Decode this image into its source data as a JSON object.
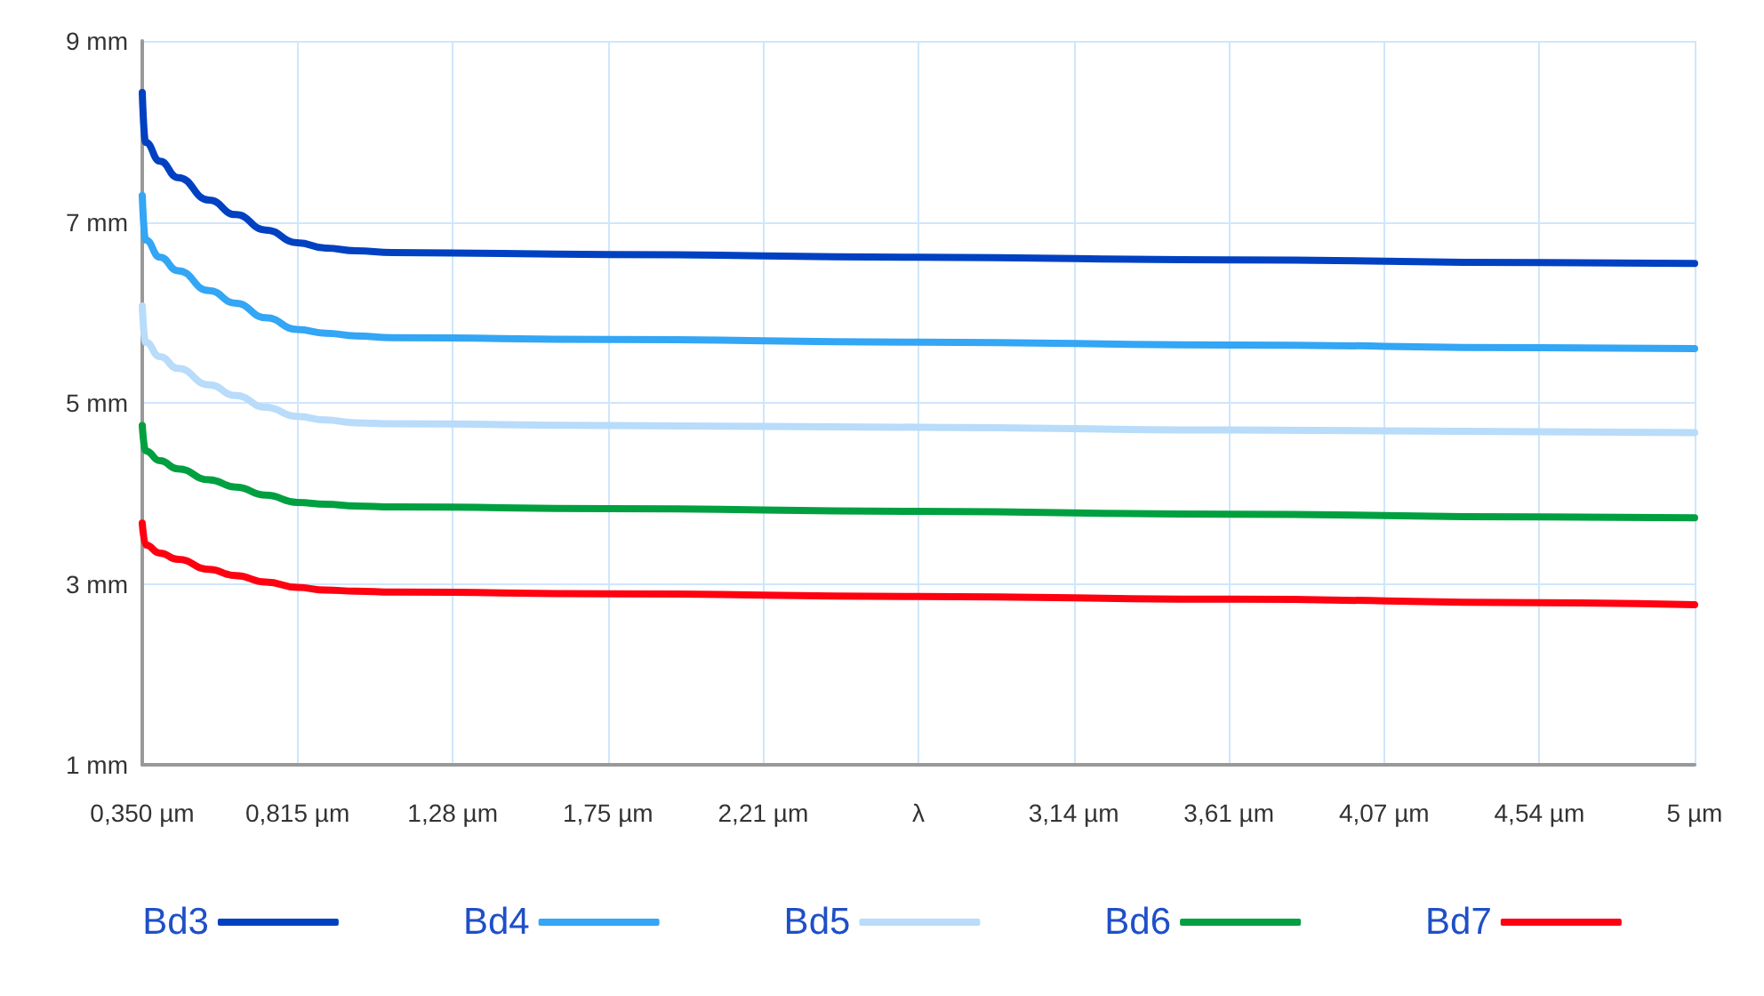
{
  "chart_data": {
    "type": "line",
    "x": [
      0.35,
      0.36,
      0.403,
      0.457,
      0.55,
      0.63,
      0.72,
      0.815,
      0.9,
      0.99,
      1.1,
      1.75,
      2.675,
      3.61,
      4.54,
      5
    ],
    "series": [
      {
        "name": "Bd3",
        "color": "#0041c2",
        "values": [
          8.43,
          7.88,
          7.67,
          7.49,
          7.24,
          7.08,
          6.91,
          6.77,
          6.71,
          6.68,
          6.66,
          6.64,
          6.61,
          6.58,
          6.55,
          6.54
        ]
      },
      {
        "name": "Bd4",
        "color": "#33a6f5",
        "values": [
          7.29,
          6.8,
          6.61,
          6.46,
          6.24,
          6.1,
          5.94,
          5.81,
          5.77,
          5.74,
          5.72,
          5.7,
          5.67,
          5.64,
          5.61,
          5.6
        ]
      },
      {
        "name": "Bd5",
        "color": "#b8dcfa",
        "values": [
          6.07,
          5.67,
          5.51,
          5.38,
          5.2,
          5.08,
          4.95,
          4.85,
          4.81,
          4.78,
          4.77,
          4.75,
          4.73,
          4.7,
          4.68,
          4.67
        ]
      },
      {
        "name": "Bd6",
        "color": "#00a040",
        "values": [
          4.75,
          4.47,
          4.36,
          4.27,
          4.15,
          4.07,
          3.98,
          3.9,
          3.88,
          3.86,
          3.85,
          3.83,
          3.8,
          3.77,
          3.74,
          3.73
        ]
      },
      {
        "name": "Bd7",
        "color": "#ff0010",
        "values": [
          3.67,
          3.43,
          3.34,
          3.27,
          3.16,
          3.09,
          3.02,
          2.96,
          2.93,
          2.92,
          2.91,
          2.89,
          2.86,
          2.83,
          2.79,
          2.77
        ]
      }
    ],
    "xlim": [
      0.35,
      5
    ],
    "xticks": [
      {
        "value": 0.35,
        "label": "0,350 µm"
      },
      {
        "value": 0.815,
        "label": "0,815 µm"
      },
      {
        "value": 1.28,
        "label": "1,28 µm"
      },
      {
        "value": 1.745,
        "label": "1,75 µm"
      },
      {
        "value": 2.21,
        "label": "2,21 µm"
      },
      {
        "value": 2.675,
        "label": "λ"
      },
      {
        "value": 3.14,
        "label": "3,14 µm"
      },
      {
        "value": 3.605,
        "label": "3,61 µm"
      },
      {
        "value": 4.07,
        "label": "4,07 µm"
      },
      {
        "value": 4.535,
        "label": "4,54 µm"
      },
      {
        "value": 5,
        "label": "5 µm"
      }
    ],
    "ylim": [
      1,
      9
    ],
    "yticks": [
      {
        "value": 1,
        "label": "1 mm"
      },
      {
        "value": 3,
        "label": "3 mm"
      },
      {
        "value": 5,
        "label": "5 mm"
      },
      {
        "value": 7,
        "label": "7 mm"
      },
      {
        "value": 9,
        "label": "9 mm"
      }
    ],
    "grid": true,
    "legend": "bottom",
    "marker": "none",
    "line_style": "solid"
  }
}
